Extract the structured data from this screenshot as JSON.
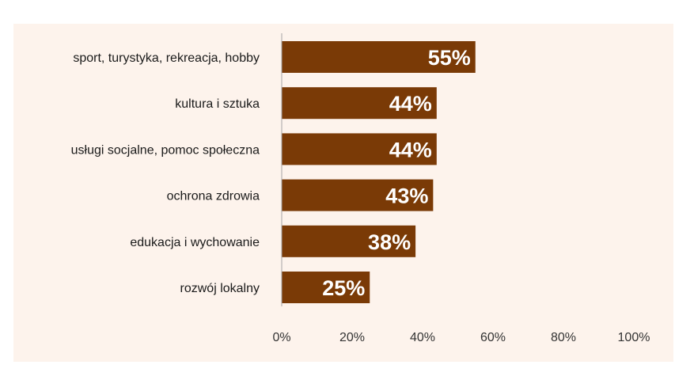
{
  "chart_data": {
    "type": "bar",
    "orientation": "horizontal",
    "categories": [
      "sport, turystyka, rekreacja, hobby",
      "kultura i sztuka",
      "usługi socjalne, pomoc społeczna",
      "ochrona zdrowia",
      "edukacja i wychowanie",
      "rozwój lokalny"
    ],
    "values": [
      55,
      44,
      44,
      43,
      38,
      25
    ],
    "value_labels": [
      "55%",
      "44%",
      "44%",
      "43%",
      "38%",
      "25%"
    ],
    "xlim": [
      0,
      100
    ],
    "xticks": [
      0,
      20,
      40,
      60,
      80,
      100
    ],
    "xtick_labels": [
      "0%",
      "20%",
      "40%",
      "60%",
      "80%",
      "100%"
    ],
    "title": "",
    "xlabel": "",
    "ylabel": "",
    "grid": false,
    "legend": "none",
    "colors": {
      "bar": "#7a3a06",
      "background": "#fdf3ec",
      "axis": "#a6a6a6",
      "value_text": "#ffffff"
    }
  }
}
